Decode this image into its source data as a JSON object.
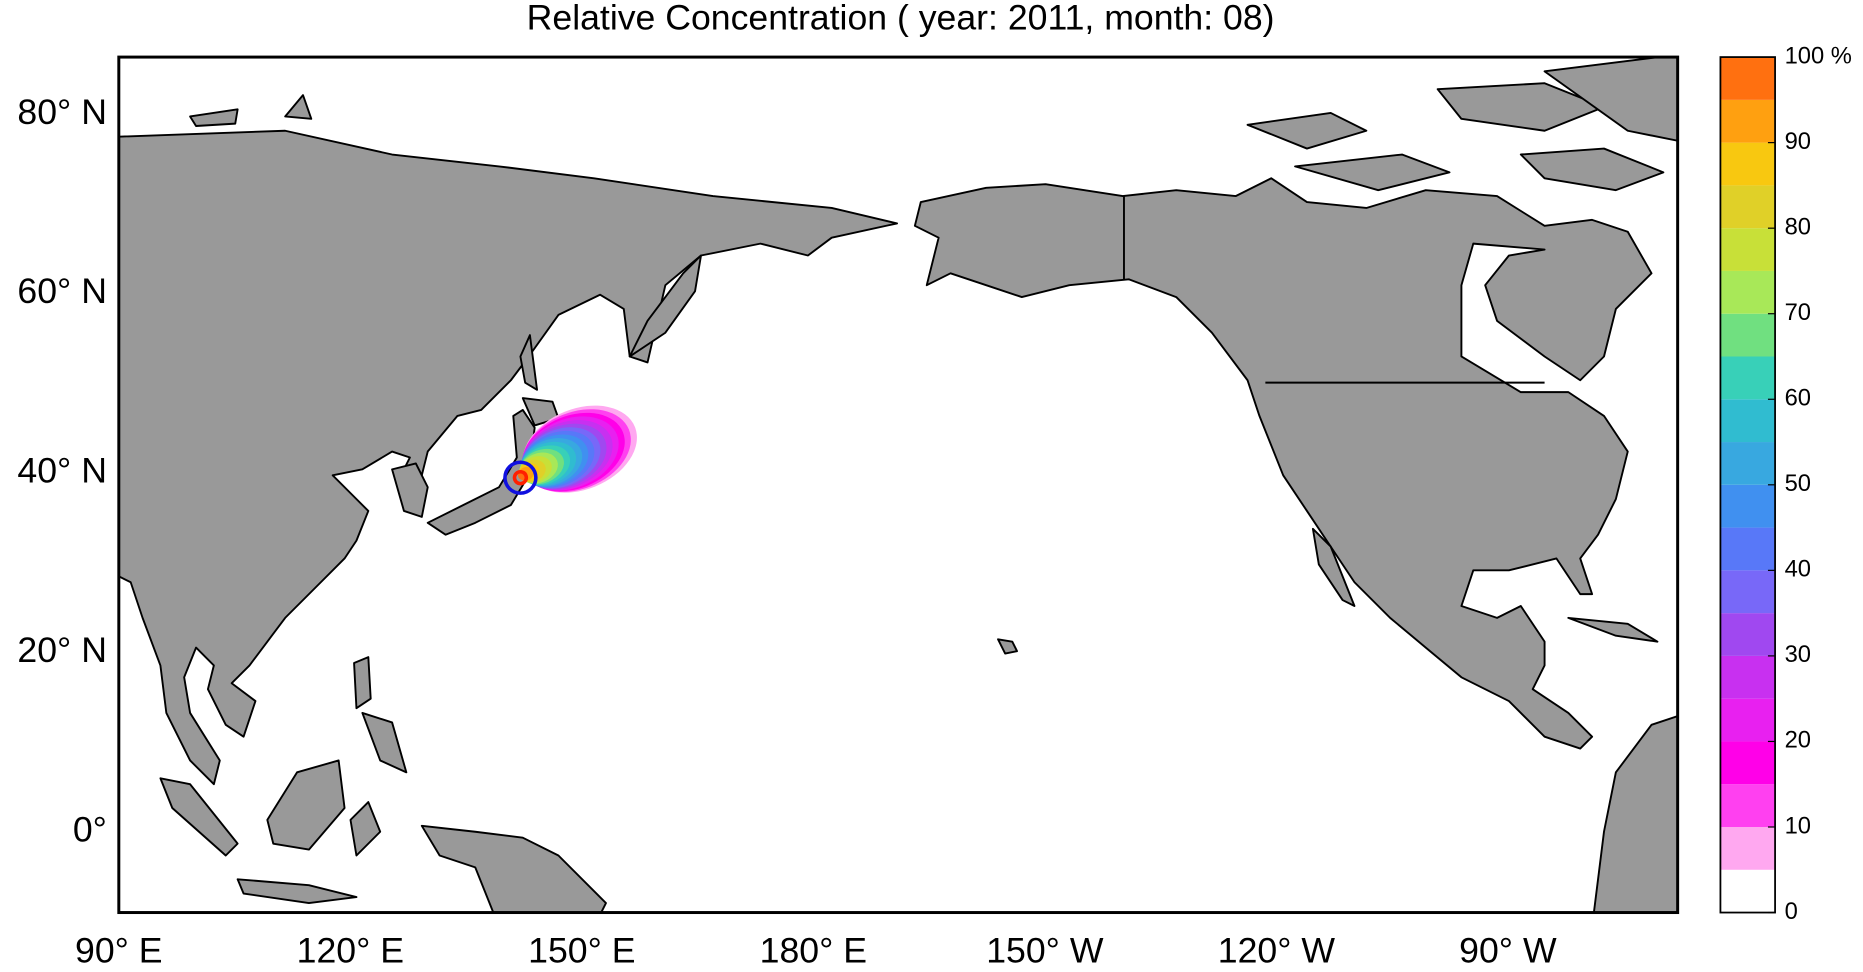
{
  "title": "Relative Concentration ( year: 2011, month: 08)",
  "map": {
    "lon_range": [
      90,
      292
    ],
    "lat_range": [
      -9,
      86.4
    ],
    "lon_ticks": [
      {
        "value": 90,
        "label": "90° E"
      },
      {
        "value": 120,
        "label": "120° E"
      },
      {
        "value": 150,
        "label": "150° E"
      },
      {
        "value": 180,
        "label": "180° E"
      },
      {
        "value": 210,
        "label": "150° W"
      },
      {
        "value": 240,
        "label": "120° W"
      },
      {
        "value": 270,
        "label": "90° W"
      }
    ],
    "lat_ticks": [
      {
        "value": 80,
        "label": "80° N"
      },
      {
        "value": 60,
        "label": "60° N"
      },
      {
        "value": 40,
        "label": "40° N"
      },
      {
        "value": 20,
        "label": "20° N"
      },
      {
        "value": 0,
        "label": "0°"
      }
    ]
  },
  "colorbar": {
    "levels": [
      0,
      5,
      10,
      15,
      20,
      25,
      30,
      35,
      40,
      45,
      50,
      55,
      60,
      65,
      70,
      75,
      80,
      85,
      90,
      95,
      100
    ],
    "colors": [
      "#ffffff",
      "#ffa8f0",
      "#ff40f0",
      "#ff00e8",
      "#e820f0",
      "#c830f0",
      "#a048f0",
      "#7868f8",
      "#5878f8",
      "#4090f0",
      "#38a8e0",
      "#30bcd0",
      "#38d0b8",
      "#70e080",
      "#a8e858",
      "#c8e038",
      "#e0d028",
      "#f8c810",
      "#ffa010",
      "#ff7010"
    ],
    "ticks": [
      0,
      10,
      20,
      30,
      40,
      50,
      60,
      70,
      80,
      90,
      {
        "value": 100,
        "label": "100 %"
      }
    ]
  }
}
